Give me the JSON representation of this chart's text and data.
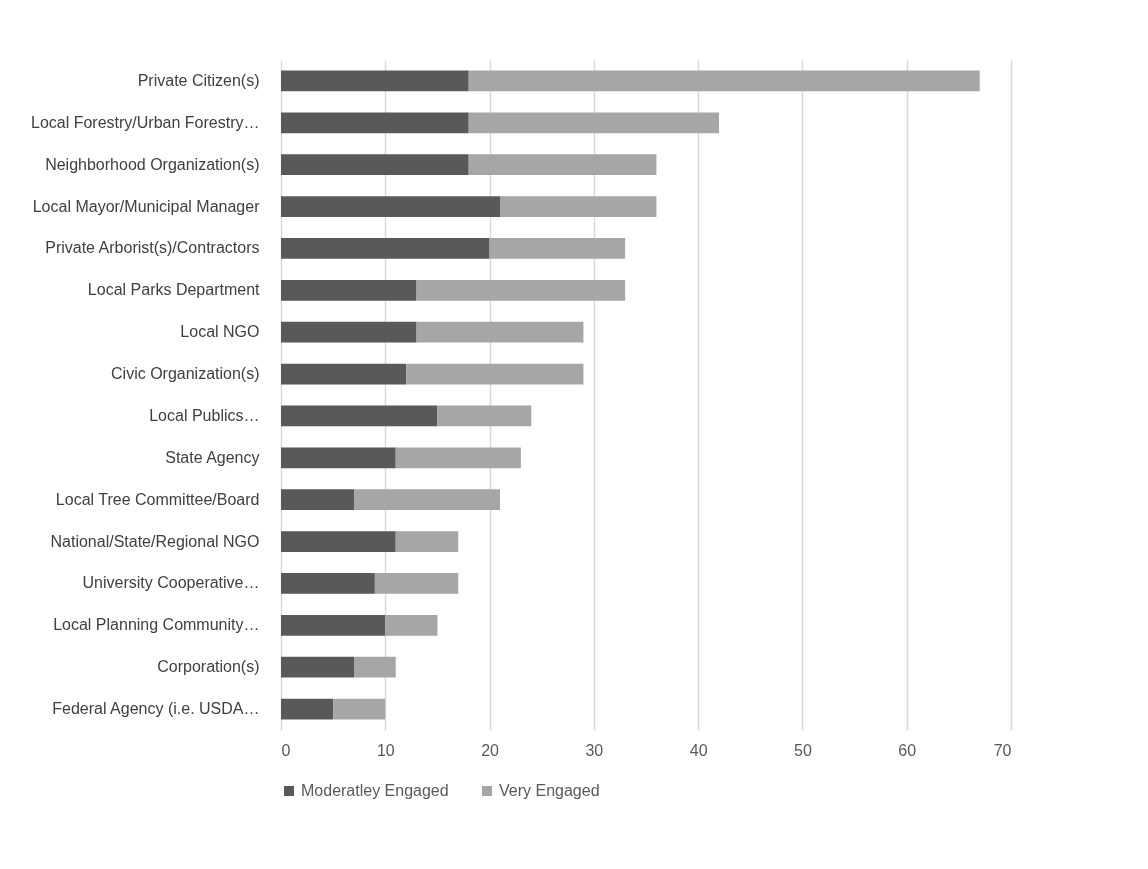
{
  "chart_data": {
    "type": "bar",
    "orientation": "horizontal",
    "stacked": true,
    "categories": [
      "Private Citizen(s)",
      "Local Forestry/Urban Forestry…",
      "Neighborhood Organization(s)",
      "Local Mayor/Municipal Manager",
      "Private Arborist(s)/Contractors",
      "Local Parks Department",
      "Local NGO",
      "Civic Organization(s)",
      "Local Publics…",
      "State Agency",
      "Local Tree Committee/Board",
      "National/State/Regional NGO",
      "University Cooperative…",
      "Local Planning Community…",
      "Corporation(s)",
      "Federal Agency (i.e. USDA…"
    ],
    "series": [
      {
        "name": "Moderatley Engaged",
        "color": "#595959",
        "values": [
          18,
          18,
          18,
          21,
          20,
          13,
          13,
          12,
          15,
          11,
          7,
          11,
          9,
          10,
          7,
          5
        ]
      },
      {
        "name": "Very Engaged",
        "color": "#a6a6a6",
        "values": [
          49,
          24,
          18,
          15,
          13,
          20,
          16,
          17,
          9,
          12,
          14,
          6,
          8,
          5,
          4,
          5
        ]
      }
    ],
    "xlim": [
      0,
      70
    ],
    "xticks": [
      0,
      10,
      20,
      30,
      40,
      50,
      60,
      70
    ],
    "grid": "x",
    "legend": "bottom"
  }
}
